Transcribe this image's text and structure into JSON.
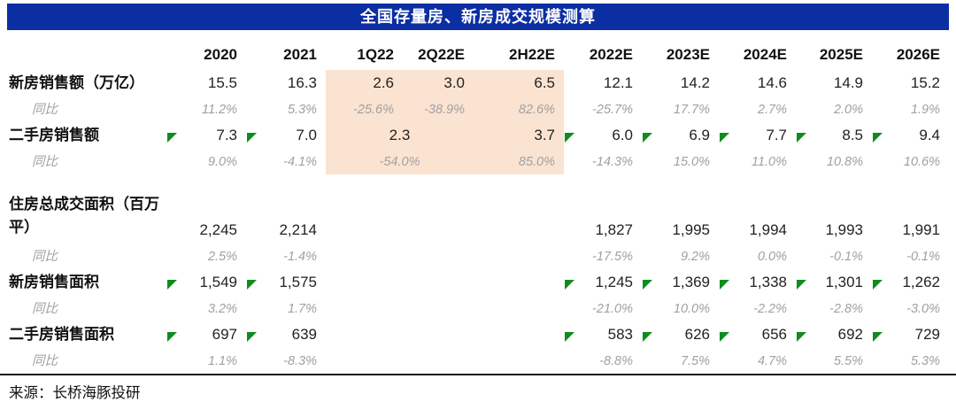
{
  "title": "全国存量房、新房成交规模测算",
  "source": "来源：长桥海豚投研",
  "colors": {
    "title_bg": "#0C2EA3",
    "title_text": "#FFFFFF",
    "highlight": "#FBE3D1",
    "flag_green": "#0F8C1E",
    "yoy_gray": "#A0A0A3"
  },
  "columns": [
    "2020",
    "2021",
    "1Q22",
    "2Q22E",
    "2H22E",
    "2022E",
    "2023E",
    "2024E",
    "2025E",
    "2026E"
  ],
  "highlight_columns": [
    "1Q22",
    "2Q22E",
    "2H22E"
  ],
  "rows": [
    {
      "kind": "value",
      "label": "新房销售额（万亿）",
      "cells": [
        {
          "v": "15.5"
        },
        {
          "v": "16.3"
        },
        {
          "v": "2.6",
          "hl": true
        },
        {
          "v": "3.0",
          "hl": true
        },
        {
          "v": "6.5",
          "hl": true
        },
        {
          "v": "12.1"
        },
        {
          "v": "14.2"
        },
        {
          "v": "14.6"
        },
        {
          "v": "14.9"
        },
        {
          "v": "15.2"
        }
      ]
    },
    {
      "kind": "yoy",
      "label": "同比",
      "cells": [
        {
          "v": "11.2%"
        },
        {
          "v": "5.3%"
        },
        {
          "v": "-25.6%",
          "hl": true
        },
        {
          "v": "-38.9%",
          "hl": true
        },
        {
          "v": "82.6%",
          "hl": true
        },
        {
          "v": "-25.7%"
        },
        {
          "v": "17.7%"
        },
        {
          "v": "2.7%"
        },
        {
          "v": "2.0%"
        },
        {
          "v": "1.9%"
        }
      ]
    },
    {
      "kind": "value",
      "label": "二手房销售额",
      "cells": [
        {
          "v": "7.3",
          "flag": true
        },
        {
          "v": "7.0",
          "flag": true
        },
        {
          "v": "2.3",
          "hl": true,
          "span": 2,
          "align": "center"
        },
        {
          "v": "3.7",
          "hl": true
        },
        {
          "v": "6.0",
          "flag": true
        },
        {
          "v": "6.9",
          "flag": true
        },
        {
          "v": "7.7",
          "flag": true
        },
        {
          "v": "8.5",
          "flag": true
        },
        {
          "v": "9.4",
          "flag": true
        }
      ]
    },
    {
      "kind": "yoy",
      "label": "同比",
      "cells": [
        {
          "v": "9.0%"
        },
        {
          "v": "-4.1%"
        },
        {
          "v": "-54.0%",
          "hl": true,
          "span": 2,
          "align": "center"
        },
        {
          "v": "85.0%",
          "hl": true
        },
        {
          "v": "-14.3%"
        },
        {
          "v": "15.0%"
        },
        {
          "v": "11.0%"
        },
        {
          "v": "10.8%"
        },
        {
          "v": "10.6%"
        }
      ]
    },
    {
      "kind": "spacer"
    },
    {
      "kind": "value",
      "tall": true,
      "label": "住房总成交面积（百万平）",
      "cells": [
        {
          "v": "2,245"
        },
        {
          "v": "2,214"
        },
        {
          "v": ""
        },
        {
          "v": ""
        },
        {
          "v": ""
        },
        {
          "v": "1,827"
        },
        {
          "v": "1,995"
        },
        {
          "v": "1,994"
        },
        {
          "v": "1,993"
        },
        {
          "v": "1,991"
        }
      ]
    },
    {
      "kind": "yoy",
      "label": "同比",
      "cells": [
        {
          "v": "2.5%"
        },
        {
          "v": "-1.4%"
        },
        {
          "v": ""
        },
        {
          "v": ""
        },
        {
          "v": ""
        },
        {
          "v": "-17.5%"
        },
        {
          "v": "9.2%"
        },
        {
          "v": "0.0%"
        },
        {
          "v": "-0.1%"
        },
        {
          "v": "-0.1%"
        }
      ]
    },
    {
      "kind": "value",
      "label": "新房销售面积",
      "cells": [
        {
          "v": "1,549",
          "flag": true
        },
        {
          "v": "1,575",
          "flag": true
        },
        {
          "v": ""
        },
        {
          "v": ""
        },
        {
          "v": ""
        },
        {
          "v": "1,245",
          "flag": true
        },
        {
          "v": "1,369",
          "flag": true
        },
        {
          "v": "1,338",
          "flag": true
        },
        {
          "v": "1,301",
          "flag": true
        },
        {
          "v": "1,262",
          "flag": true
        }
      ]
    },
    {
      "kind": "yoy",
      "label": "同比",
      "cells": [
        {
          "v": "3.2%"
        },
        {
          "v": "1.7%"
        },
        {
          "v": ""
        },
        {
          "v": ""
        },
        {
          "v": ""
        },
        {
          "v": "-21.0%"
        },
        {
          "v": "10.0%"
        },
        {
          "v": "-2.2%"
        },
        {
          "v": "-2.8%"
        },
        {
          "v": "-3.0%"
        }
      ]
    },
    {
      "kind": "value",
      "label": "二手房销售面积",
      "cells": [
        {
          "v": "697",
          "flag": true
        },
        {
          "v": "639",
          "flag": true
        },
        {
          "v": ""
        },
        {
          "v": ""
        },
        {
          "v": ""
        },
        {
          "v": "583",
          "flag": true
        },
        {
          "v": "626",
          "flag": true
        },
        {
          "v": "656",
          "flag": true
        },
        {
          "v": "692",
          "flag": true
        },
        {
          "v": "729",
          "flag": true
        }
      ]
    },
    {
      "kind": "yoy",
      "label": "同比",
      "cells": [
        {
          "v": "1.1%"
        },
        {
          "v": "-8.3%"
        },
        {
          "v": ""
        },
        {
          "v": ""
        },
        {
          "v": ""
        },
        {
          "v": "-8.8%"
        },
        {
          "v": "7.5%"
        },
        {
          "v": "4.7%"
        },
        {
          "v": "5.5%"
        },
        {
          "v": "5.3%"
        }
      ]
    }
  ]
}
